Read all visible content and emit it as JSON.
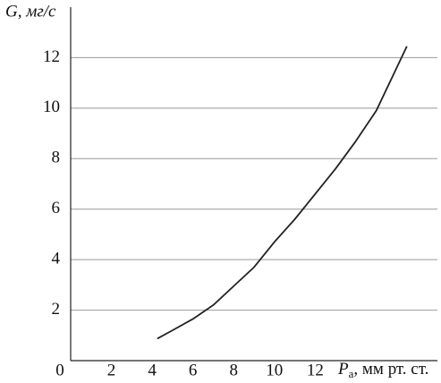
{
  "chart_data": {
    "type": "line",
    "y_label": "G, мг/с",
    "x_label_symbol": "P",
    "x_label_subscript": "a",
    "x_label_units": ", мм рт. ст.",
    "x": [
      4.25,
      5,
      6,
      7,
      8,
      9,
      10,
      11,
      12,
      13,
      14,
      15,
      16,
      16.5
    ],
    "series": [
      {
        "color": "#222222",
        "values": [
          0.87,
          1.2,
          1.65,
          2.2,
          2.95,
          3.7,
          4.7,
          5.6,
          6.6,
          7.6,
          8.7,
          9.9,
          11.6,
          12.45
        ]
      }
    ],
    "xlim": [
      0,
      18
    ],
    "ylim": [
      0,
      14
    ],
    "xticks": [
      0,
      2,
      4,
      6,
      8,
      10,
      12
    ],
    "yticks": [
      2,
      4,
      6,
      8,
      10,
      12
    ],
    "grid": true
  }
}
